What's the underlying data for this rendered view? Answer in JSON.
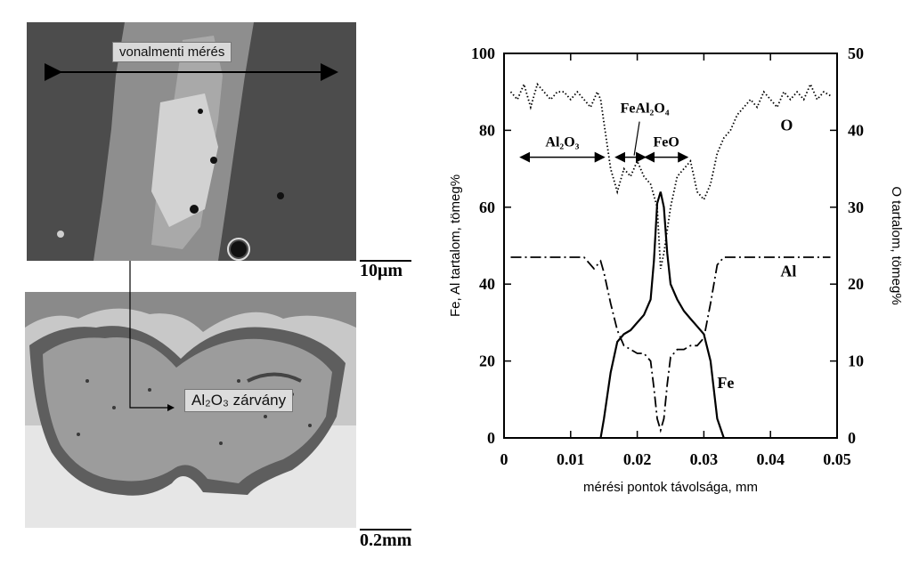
{
  "top_image": {
    "label": "vonalmenti mérés",
    "scale_label": "10μm"
  },
  "bottom_image": {
    "label_formula": "Al₂O₃",
    "label_word": "zárvány",
    "scale_label": "0.2mm"
  },
  "chart_data": {
    "type": "line",
    "xlabel": "mérési pontok távolsága, mm",
    "ylabel_left": "Fe, Al tartalom, tömeg%",
    "ylabel_right": "O tartalom, tömeg%",
    "xlim": [
      0,
      0.05
    ],
    "ylim_left": [
      0,
      100
    ],
    "ylim_right": [
      0,
      50
    ],
    "x_ticks": [
      "0",
      "0.01",
      "0.02",
      "0.03",
      "0.04",
      "0.05"
    ],
    "y_ticks_left": [
      "0",
      "20",
      "40",
      "60",
      "80",
      "100"
    ],
    "y_ticks_right": [
      "0",
      "10",
      "20",
      "30",
      "40",
      "50"
    ],
    "series": [
      {
        "name": "Fe",
        "axis": "left",
        "style": "solid",
        "x": [
          0.0145,
          0.015,
          0.016,
          0.017,
          0.018,
          0.019,
          0.02,
          0.021,
          0.022,
          0.0225,
          0.023,
          0.0235,
          0.024,
          0.0245,
          0.025,
          0.026,
          0.027,
          0.028,
          0.029,
          0.03,
          0.031,
          0.032,
          0.033
        ],
        "y": [
          0,
          5,
          17,
          25,
          27,
          28,
          30,
          32,
          36,
          46,
          61,
          64,
          60,
          48,
          40,
          36,
          33,
          31,
          29,
          27,
          20,
          5,
          0
        ]
      },
      {
        "name": "Al",
        "axis": "left",
        "style": "dash-dot",
        "x": [
          0.001,
          0.012,
          0.0135,
          0.0145,
          0.015,
          0.016,
          0.017,
          0.018,
          0.019,
          0.02,
          0.021,
          0.022,
          0.0225,
          0.023,
          0.0235,
          0.024,
          0.0245,
          0.025,
          0.026,
          0.027,
          0.028,
          0.029,
          0.03,
          0.031,
          0.032,
          0.033,
          0.049
        ],
        "y": [
          47,
          47,
          44,
          46,
          43,
          35,
          28,
          24,
          23,
          22,
          22,
          20,
          13,
          5,
          2,
          5,
          14,
          21,
          23,
          23,
          24,
          24,
          26,
          35,
          45,
          47,
          47
        ]
      },
      {
        "name": "O",
        "axis": "right",
        "style": "dotted",
        "x": [
          0.001,
          0.002,
          0.003,
          0.004,
          0.005,
          0.006,
          0.007,
          0.008,
          0.009,
          0.01,
          0.011,
          0.012,
          0.013,
          0.014,
          0.0145,
          0.015,
          0.016,
          0.017,
          0.018,
          0.019,
          0.02,
          0.021,
          0.022,
          0.023,
          0.0235,
          0.024,
          0.025,
          0.026,
          0.027,
          0.028,
          0.029,
          0.03,
          0.031,
          0.032,
          0.033,
          0.034,
          0.035,
          0.036,
          0.037,
          0.038,
          0.039,
          0.04,
          0.041,
          0.042,
          0.043,
          0.044,
          0.045,
          0.046,
          0.047,
          0.048,
          0.049
        ],
        "y": [
          45,
          44,
          46,
          43,
          46,
          45,
          44,
          45,
          45,
          44,
          45,
          44,
          43,
          45,
          44,
          41,
          35,
          32,
          35,
          34,
          36,
          34,
          33,
          30,
          22,
          24,
          30,
          34,
          35,
          36,
          32,
          31,
          33,
          37,
          39,
          40,
          42,
          43,
          44,
          43,
          45,
          44,
          43,
          45,
          44,
          45,
          44,
          46,
          44,
          45,
          44.5
        ]
      }
    ],
    "annotations": [
      {
        "text": "Al₂O₃",
        "x_from": 0.0025,
        "x_to": 0.015,
        "y": 73
      },
      {
        "text": "FeAl₂O₄",
        "x_from": 0.0168,
        "x_to": 0.0212,
        "y": 73
      },
      {
        "text": "FeO",
        "x_from": 0.0212,
        "x_to": 0.0275,
        "y": 73
      }
    ],
    "series_labels": [
      {
        "text": "O",
        "x": 0.0415,
        "y": 80
      },
      {
        "text": "Al",
        "x": 0.0415,
        "y": 42
      },
      {
        "text": "Fe",
        "x": 0.032,
        "y": 13
      }
    ],
    "grid": false
  }
}
